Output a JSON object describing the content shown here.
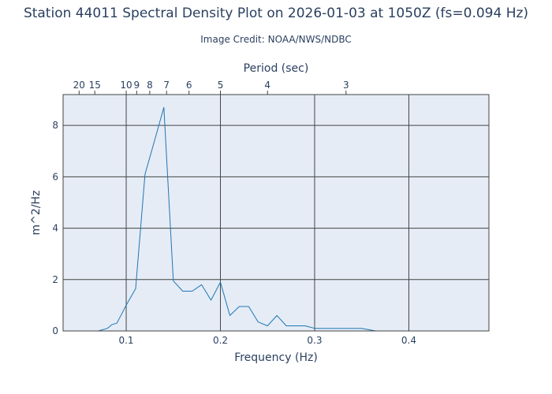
{
  "title": "Station 44011 Spectral Density Plot  on 2026-01-03 at 1050Z (fs=0.094 Hz)",
  "subtitle": "Image Credit: NOAA/NWS/NDBC",
  "colors": {
    "plot_background": "#e5ecf6",
    "line": "#1f77b4",
    "text": "#2a3f5f",
    "grid": "#444444"
  },
  "chart_data": {
    "type": "line",
    "xlabel": "Frequency (Hz)",
    "ylabel": "m^2/Hz",
    "top_axis_label": "Period (sec)",
    "xlim": [
      0.033,
      0.485
    ],
    "ylim": [
      0,
      9.2
    ],
    "grid": true,
    "x_ticks": [
      {
        "value": 0.1,
        "label": "0.1"
      },
      {
        "value": 0.2,
        "label": "0.2"
      },
      {
        "value": 0.3,
        "label": "0.3"
      },
      {
        "value": 0.4,
        "label": "0.4"
      }
    ],
    "y_ticks": [
      {
        "value": 0,
        "label": "0"
      },
      {
        "value": 2,
        "label": "2"
      },
      {
        "value": 4,
        "label": "4"
      },
      {
        "value": 6,
        "label": "6"
      },
      {
        "value": 8,
        "label": "8"
      }
    ],
    "period_ticks": [
      {
        "period": 20,
        "label": "20"
      },
      {
        "period": 15,
        "label": "15"
      },
      {
        "period": 10,
        "label": "10"
      },
      {
        "period": 9,
        "label": "9"
      },
      {
        "period": 8,
        "label": "8"
      },
      {
        "period": 7,
        "label": "7"
      },
      {
        "period": 6,
        "label": "6"
      },
      {
        "period": 5,
        "label": "5"
      },
      {
        "period": 4,
        "label": "4"
      },
      {
        "period": 3,
        "label": "3"
      }
    ],
    "series": [
      {
        "x": [
          0.033,
          0.05,
          0.07,
          0.075,
          0.08,
          0.085,
          0.09,
          0.095,
          0.1,
          0.11,
          0.12,
          0.13,
          0.14,
          0.15,
          0.16,
          0.17,
          0.18,
          0.19,
          0.2,
          0.21,
          0.22,
          0.23,
          0.24,
          0.25,
          0.26,
          0.27,
          0.28,
          0.29,
          0.3,
          0.35,
          0.365,
          0.4,
          0.485
        ],
        "y": [
          0.0,
          0.0,
          0.0,
          0.05,
          0.1,
          0.25,
          0.3,
          0.65,
          1.0,
          1.65,
          6.1,
          7.4,
          8.7,
          1.95,
          1.55,
          1.55,
          1.8,
          1.2,
          1.9,
          0.6,
          0.95,
          0.95,
          0.35,
          0.2,
          0.6,
          0.2,
          0.2,
          0.2,
          0.1,
          0.1,
          0.0,
          0.0,
          0.0
        ]
      }
    ]
  }
}
